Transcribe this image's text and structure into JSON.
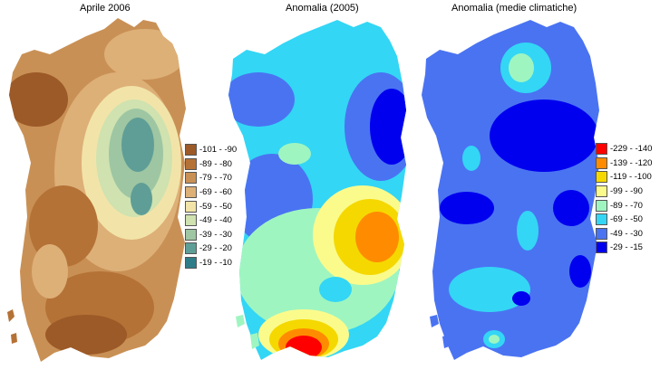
{
  "panels": [
    {
      "title": "Aprile 2006",
      "legend": [
        {
          "label": "-101 - -90",
          "color": "#9c5a28"
        },
        {
          "label": "-89 - -80",
          "color": "#b57236"
        },
        {
          "label": "-79 - -70",
          "color": "#c99055"
        },
        {
          "label": "-69 - -60",
          "color": "#ddb078"
        },
        {
          "label": "-59 - -50",
          "color": "#f2e4a8"
        },
        {
          "label": "-49 - -40",
          "color": "#cfe2b0"
        },
        {
          "label": "-39 - -30",
          "color": "#9ec6a2"
        },
        {
          "label": "-29 - -20",
          "color": "#5f9e96"
        },
        {
          "label": "-19 - -10",
          "color": "#2f7d88"
        }
      ]
    },
    {
      "title": "Anomalia (2005)"
    },
    {
      "title": "Anomalia (medie climatiche)",
      "legend": [
        {
          "label": "-229 - -140",
          "color": "#ff0000"
        },
        {
          "label": "-139 - -120",
          "color": "#ff8c00"
        },
        {
          "label": "-119 - -100",
          "color": "#f5d800"
        },
        {
          "label": "-99 - -90",
          "color": "#fbfb8c"
        },
        {
          "label": "-89 - -70",
          "color": "#9ff5c0"
        },
        {
          "label": "-69 - -50",
          "color": "#33d6f5"
        },
        {
          "label": "-49 - -30",
          "color": "#4a73f2"
        },
        {
          "label": "-29 - -15",
          "color": "#0000ee"
        }
      ]
    }
  ]
}
